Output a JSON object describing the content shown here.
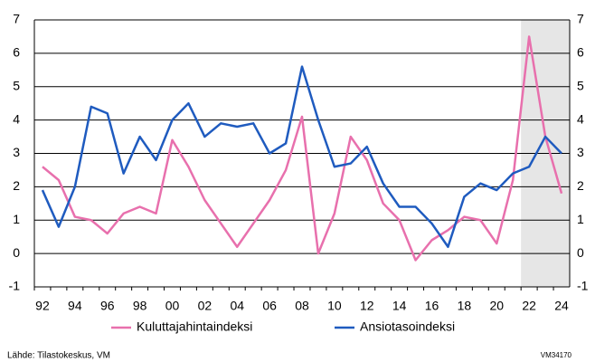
{
  "chart_data": {
    "type": "line",
    "categories": [
      "92",
      null,
      "94",
      null,
      "96",
      null,
      "98",
      null,
      "00",
      null,
      "02",
      null,
      "04",
      null,
      "06",
      null,
      "08",
      null,
      "10",
      null,
      "12",
      null,
      "14",
      null,
      "16",
      null,
      "18",
      null,
      "20",
      null,
      "22",
      null,
      "24"
    ],
    "series": [
      {
        "name": "Kuluttajahintaindeksi",
        "color": "#e870ad",
        "values": [
          2.6,
          2.2,
          1.1,
          1.0,
          0.6,
          1.2,
          1.4,
          1.2,
          3.4,
          2.6,
          1.6,
          0.9,
          0.2,
          0.9,
          1.6,
          2.5,
          4.1,
          0.0,
          1.2,
          3.5,
          2.8,
          1.5,
          1.0,
          -0.2,
          0.4,
          0.7,
          1.1,
          1.0,
          0.3,
          2.2,
          6.5,
          3.5,
          1.8
        ]
      },
      {
        "name": "Ansiotasoindeksi",
        "color": "#1f5bbf",
        "values": [
          1.9,
          0.8,
          2.0,
          4.4,
          4.2,
          2.4,
          3.5,
          2.8,
          4.0,
          4.5,
          3.5,
          3.9,
          3.8,
          3.9,
          3.0,
          3.3,
          5.6,
          4.0,
          2.6,
          2.7,
          3.2,
          2.1,
          1.4,
          1.4,
          0.9,
          0.2,
          1.7,
          2.1,
          1.9,
          2.4,
          2.6,
          3.5,
          3.0
        ]
      }
    ],
    "ylim": [
      -1,
      7
    ],
    "yticks": [
      -1,
      0,
      1,
      2,
      3,
      4,
      5,
      6,
      7
    ],
    "y2lim": [
      -1,
      7
    ],
    "y2ticks": [
      -1,
      0,
      1,
      2,
      3,
      4,
      5,
      6,
      7
    ],
    "grid": true,
    "source": "Lähde: Tilastokeskus, VM",
    "code": "VM34170"
  }
}
